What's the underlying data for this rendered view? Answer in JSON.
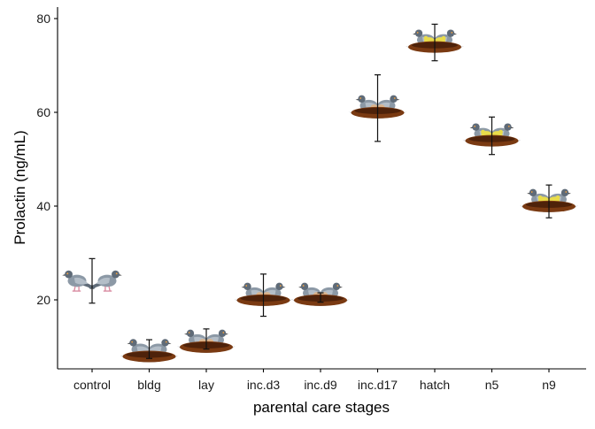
{
  "chart_data": {
    "type": "scatter",
    "xlabel": "parental care stages",
    "ylabel": "Prolactin (ng/mL)",
    "categories": [
      "control",
      "bldg",
      "lay",
      "inc.d3",
      "inc.d9",
      "inc.d17",
      "hatch",
      "n5",
      "n9"
    ],
    "y_ticks": [
      20,
      40,
      60,
      80
    ],
    "ylim": [
      5,
      83
    ],
    "grid": false,
    "points": [
      {
        "stage": "control",
        "mean": 23.5,
        "lower": 19.3,
        "upper": 28.8,
        "marker": "pair-of-pigeons-icon"
      },
      {
        "stage": "bldg",
        "mean": 8.5,
        "lower": 7.5,
        "upper": 11.5,
        "marker": "pigeons-with-empty-nest-icon"
      },
      {
        "stage": "lay",
        "mean": 10.5,
        "lower": 9.5,
        "upper": 13.8,
        "marker": "pigeons-with-eggs-icon"
      },
      {
        "stage": "inc.d3",
        "mean": 20.5,
        "lower": 16.5,
        "upper": 25.5,
        "marker": "pigeons-incubating-eggs-icon"
      },
      {
        "stage": "inc.d9",
        "mean": 20.5,
        "lower": 19.5,
        "upper": 21.5,
        "marker": "pigeons-incubating-eggs-icon"
      },
      {
        "stage": "inc.d17",
        "mean": 60.5,
        "lower": 53.8,
        "upper": 68.0,
        "marker": "pigeons-incubating-eggs-icon"
      },
      {
        "stage": "hatch",
        "mean": 74.5,
        "lower": 71.0,
        "upper": 78.8,
        "marker": "pigeons-with-chicks-icon"
      },
      {
        "stage": "n5",
        "mean": 54.5,
        "lower": 51.0,
        "upper": 59.0,
        "marker": "pigeons-with-chicks-icon"
      },
      {
        "stage": "n9",
        "mean": 40.5,
        "lower": 37.5,
        "upper": 44.5,
        "marker": "pigeons-with-chicks-icon"
      }
    ],
    "colors": {
      "axis": "#000000",
      "pigeon_body": "#8c99a6",
      "pigeon_dark": "#5f6b78",
      "pigeon_light": "#b4bec8",
      "nest": "#7a3a12",
      "nest_dark": "#4e220a",
      "egg": "#d9b38c",
      "chick": "#e9dc4a",
      "feet": "#d98aa0"
    }
  }
}
